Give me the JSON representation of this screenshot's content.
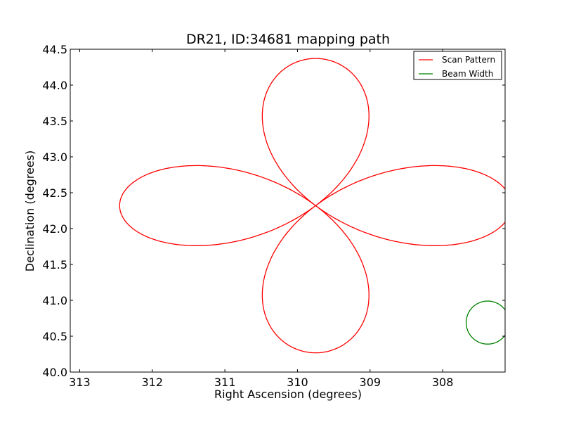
{
  "chart_data": {
    "type": "line",
    "title": "DR21, ID:34681 mapping path",
    "xlabel": "Right Ascension (degrees)",
    "ylabel": "Declination (degrees)",
    "xlim": [
      313.13,
      307.14
    ],
    "ylim": [
      40.0,
      44.5
    ],
    "x_inverted": true,
    "xticks": [
      313,
      312,
      311,
      310,
      309,
      308
    ],
    "xtick_labels": [
      "313",
      "312",
      "311",
      "310",
      "309",
      "308"
    ],
    "yticks": [
      40.0,
      40.5,
      41.0,
      41.5,
      42.0,
      42.5,
      43.0,
      43.5,
      44.0,
      44.5
    ],
    "ytick_labels": [
      "40.0",
      "40.5",
      "41.0",
      "41.5",
      "42.0",
      "42.5",
      "43.0",
      "43.5",
      "44.0",
      "44.5"
    ],
    "grid": false,
    "legend_position": "top-right",
    "series": [
      {
        "name": "Scan Pattern",
        "color": "#ff0000",
        "curve": "four-petal rose scan centred at RA 309.75, Dec 42.32; petals reach RA 312.5 and 307.14 along Dec 42.32, and Dec 44.32 and 40.32 along RA 309.75"
      },
      {
        "name": "Beam Width",
        "color": "#008000",
        "center": [
          307.38,
          40.69
        ],
        "radius_deg": 0.3
      }
    ]
  }
}
